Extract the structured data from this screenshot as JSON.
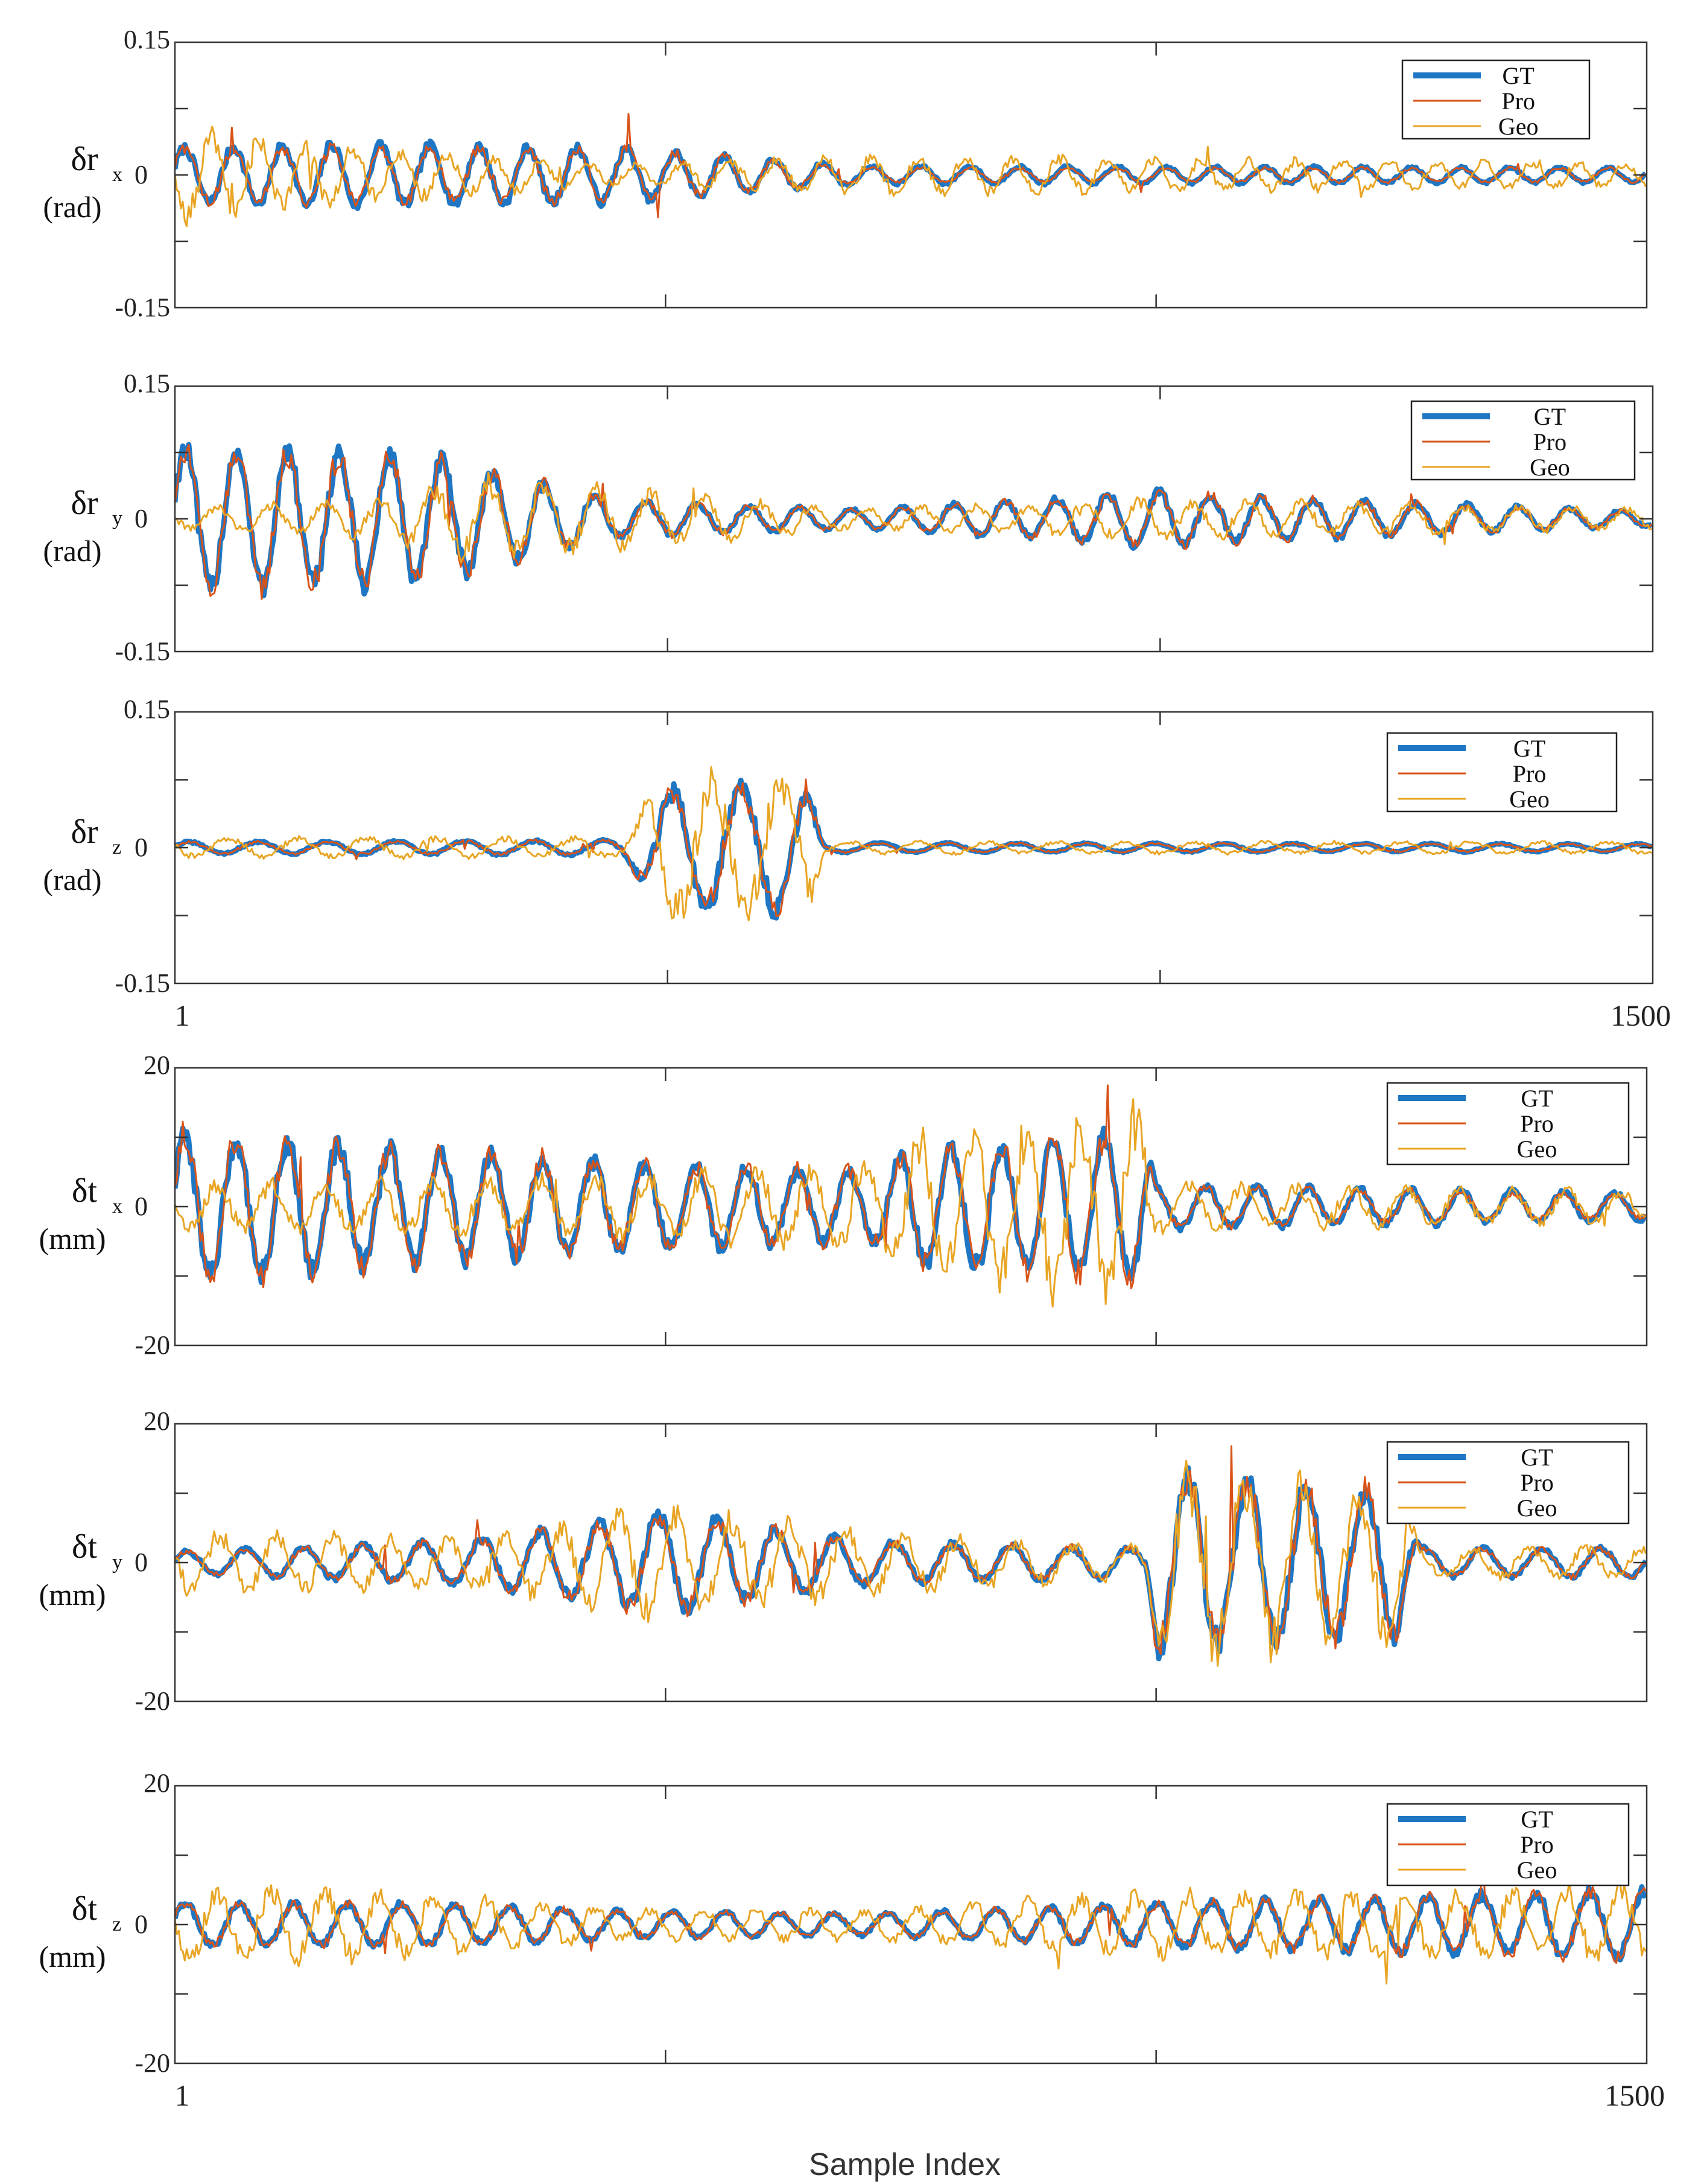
{
  "figure": {
    "xlabel": "Sample Index",
    "colors": {
      "GT": "#1f77c4",
      "Pro": "#d95319",
      "Geo": "#e8a524"
    }
  },
  "chart_data": [
    {
      "type": "line",
      "label": "δr",
      "sub": "x",
      "unit": "(rad)",
      "xlim": [
        1,
        1500
      ],
      "ylim": [
        -0.15,
        0.15
      ],
      "yticks": [
        "0.15",
        "0",
        "-0.15"
      ],
      "xticks": [],
      "legend": "top-right",
      "series": [
        {
          "name": "GT",
          "envelope": [
            [
              1,
              0.03
            ],
            [
              150,
              0.035
            ],
            [
              450,
              0.03
            ],
            [
              700,
              0.01
            ],
            [
              1500,
              0.008
            ]
          ],
          "period": 50,
          "style": "thick"
        },
        {
          "name": "Pro",
          "envelope": [
            [
              1,
              0.03
            ],
            [
              450,
              0.03
            ],
            [
              700,
              0.008
            ],
            [
              1500,
              0.008
            ]
          ],
          "period": 50,
          "style": "thin"
        },
        {
          "name": "Geo",
          "envelope": [
            [
              1,
              0.045
            ],
            [
              150,
              0.03
            ],
            [
              450,
              0.01
            ],
            [
              700,
              0.02
            ],
            [
              1500,
              0.012
            ]
          ],
          "period": 48,
          "style": "thin"
        }
      ]
    },
    {
      "type": "line",
      "label": "δr",
      "sub": "y",
      "unit": "(rad)",
      "xlim": [
        1,
        1500
      ],
      "ylim": [
        -0.15,
        0.15
      ],
      "yticks": [
        "0.15",
        "0",
        "-0.15"
      ],
      "xticks": [],
      "legend": "top-right",
      "series": [
        {
          "name": "GT",
          "envelope": [
            [
              1,
              0.08
            ],
            [
              250,
              0.07
            ],
            [
              450,
              0.02
            ],
            [
              700,
              0.01
            ],
            [
              1000,
              0.03
            ],
            [
              1200,
              0.02
            ],
            [
              1500,
              0.008
            ]
          ],
          "period": 52,
          "style": "thick"
        },
        {
          "name": "Pro",
          "envelope": [
            [
              1,
              0.08
            ],
            [
              250,
              0.07
            ],
            [
              450,
              0.02
            ],
            [
              700,
              0.01
            ],
            [
              1000,
              0.03
            ],
            [
              1200,
              0.02
            ],
            [
              1500,
              0.008
            ]
          ],
          "period": 52,
          "style": "thin"
        },
        {
          "name": "Geo",
          "envelope": [
            [
              1,
              0.01
            ],
            [
              200,
              0.02
            ],
            [
              300,
              0.04
            ],
            [
              450,
              0.03
            ],
            [
              700,
              0.01
            ],
            [
              1000,
              0.02
            ],
            [
              1500,
              0.01
            ]
          ],
          "period": 55,
          "style": "thin"
        }
      ]
    },
    {
      "type": "line",
      "label": "δr",
      "sub": "z",
      "unit": "(rad)",
      "xlim": [
        1,
        1500
      ],
      "ylim": [
        -0.15,
        0.15
      ],
      "yticks": [
        "0.15",
        "0",
        "-0.15"
      ],
      "xticks": [
        "1",
        "1500"
      ],
      "legend": "top-right",
      "series": [
        {
          "name": "GT",
          "envelope": [
            [
              1,
              0.006
            ],
            [
              450,
              0.008
            ],
            [
              500,
              0.06
            ],
            [
              640,
              0.07
            ],
            [
              660,
              0.005
            ],
            [
              1500,
              0.004
            ]
          ],
          "period": 70,
          "style": "thick"
        },
        {
          "name": "Pro",
          "envelope": [
            [
              1,
              0.006
            ],
            [
              450,
              0.008
            ],
            [
              500,
              0.06
            ],
            [
              640,
              0.07
            ],
            [
              660,
              0.005
            ],
            [
              1500,
              0.004
            ]
          ],
          "period": 70,
          "style": "thin"
        },
        {
          "name": "Geo",
          "envelope": [
            [
              1,
              0.01
            ],
            [
              450,
              0.01
            ],
            [
              500,
              0.065
            ],
            [
              640,
              0.07
            ],
            [
              660,
              0.006
            ],
            [
              1500,
              0.006
            ]
          ],
          "period": 70,
          "style": "thin"
        }
      ]
    },
    {
      "type": "line",
      "label": "δt",
      "sub": "x",
      "unit": "(mm)",
      "xlim": [
        1,
        1500
      ],
      "ylim": [
        -20,
        20
      ],
      "yticks": [
        "20",
        "0",
        "-20"
      ],
      "xticks": [],
      "legend": "top-right",
      "series": [
        {
          "name": "GT",
          "envelope": [
            [
              1,
              10
            ],
            [
              150,
              9
            ],
            [
              480,
              6
            ],
            [
              720,
              5
            ],
            [
              750,
              8
            ],
            [
              990,
              10
            ],
            [
              1000,
              3
            ],
            [
              1500,
              2
            ]
          ],
          "period": 52,
          "style": "thick"
        },
        {
          "name": "Pro",
          "envelope": [
            [
              1,
              11
            ],
            [
              150,
              9
            ],
            [
              480,
              6
            ],
            [
              720,
              5
            ],
            [
              750,
              8
            ],
            [
              990,
              10
            ],
            [
              1000,
              3
            ],
            [
              1500,
              1.5
            ]
          ],
          "period": 52,
          "style": "thin"
        },
        {
          "name": "Geo",
          "envelope": [
            [
              1,
              3
            ],
            [
              480,
              4
            ],
            [
              720,
              6
            ],
            [
              750,
              9
            ],
            [
              990,
              12
            ],
            [
              1000,
              3
            ],
            [
              1500,
              2
            ]
          ],
          "period": 55,
          "style": "thin"
        }
      ]
    },
    {
      "type": "line",
      "label": "δt",
      "sub": "y",
      "unit": "(mm)",
      "xlim": [
        1,
        1500
      ],
      "ylim": [
        -20,
        20
      ],
      "yticks": [
        "20",
        "0",
        "-20"
      ],
      "xticks": [],
      "legend": "top-right",
      "series": [
        {
          "name": "GT",
          "envelope": [
            [
              1,
              1.5
            ],
            [
              300,
              3
            ],
            [
              500,
              7
            ],
            [
              700,
              3
            ],
            [
              990,
              2
            ],
            [
              1000,
              12
            ],
            [
              1250,
              10
            ],
            [
              1270,
              2
            ],
            [
              1500,
              2
            ]
          ],
          "period": 60,
          "style": "thick"
        },
        {
          "name": "Pro",
          "envelope": [
            [
              1,
              1.5
            ],
            [
              300,
              3
            ],
            [
              500,
              7
            ],
            [
              700,
              3
            ],
            [
              990,
              2
            ],
            [
              1000,
              12
            ],
            [
              1250,
              10
            ],
            [
              1270,
              2
            ],
            [
              1500,
              2
            ]
          ],
          "period": 60,
          "style": "thin"
        },
        {
          "name": "Geo",
          "envelope": [
            [
              1,
              4
            ],
            [
              300,
              3
            ],
            [
              500,
              7
            ],
            [
              700,
              4
            ],
            [
              990,
              2
            ],
            [
              1000,
              12
            ],
            [
              1250,
              10
            ],
            [
              1270,
              2
            ],
            [
              1500,
              2
            ]
          ],
          "period": 58,
          "style": "thin"
        }
      ]
    },
    {
      "type": "line",
      "label": "δt",
      "sub": "z",
      "unit": "(mm)",
      "xlim": [
        1,
        1500
      ],
      "ylim": [
        -20,
        20
      ],
      "yticks": [
        "20",
        "0",
        "-20"
      ],
      "xticks": [
        "1",
        "1500"
      ],
      "legend": "top-right",
      "series": [
        {
          "name": "GT",
          "envelope": [
            [
              1,
              3
            ],
            [
              250,
              3
            ],
            [
              450,
              2
            ],
            [
              700,
              1.5
            ],
            [
              1000,
              3
            ],
            [
              1280,
              4
            ],
            [
              1500,
              5
            ]
          ],
          "period": 55,
          "style": "thick"
        },
        {
          "name": "Pro",
          "envelope": [
            [
              1,
              3
            ],
            [
              250,
              3
            ],
            [
              450,
              2
            ],
            [
              700,
              1.5
            ],
            [
              1000,
              3
            ],
            [
              1280,
              4
            ],
            [
              1500,
              5
            ]
          ],
          "period": 55,
          "style": "thin"
        },
        {
          "name": "Geo",
          "envelope": [
            [
              1,
              5
            ],
            [
              250,
              4
            ],
            [
              450,
              2
            ],
            [
              700,
              2
            ],
            [
              1000,
              4
            ],
            [
              1280,
              4
            ],
            [
              1500,
              5
            ]
          ],
          "period": 55,
          "style": "thin"
        }
      ]
    }
  ]
}
